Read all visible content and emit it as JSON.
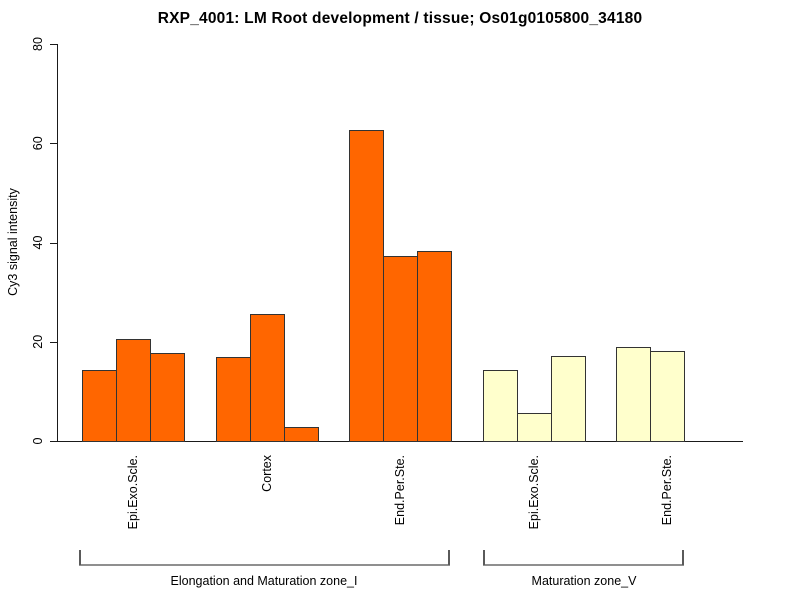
{
  "chart_data": {
    "type": "bar",
    "title": "RXP_4001: LM Root development / tissue; Os01g0105800_34180",
    "xlabel": "",
    "ylabel": "Cy3 signal intensity",
    "ylim": [
      0,
      80
    ],
    "yticks": [
      0,
      20,
      40,
      60,
      80
    ],
    "grid": false,
    "legend_position": "none",
    "bar_border_color": "#333333",
    "groups": [
      {
        "tissue": "Epi.Exo.Scle.",
        "zone": "Elongation and Maturation zone_I",
        "color": "#FF6600",
        "values": [
          14.3,
          20.5,
          17.7
        ]
      },
      {
        "tissue": "Cortex",
        "zone": "Elongation and Maturation zone_I",
        "color": "#FF6600",
        "values": [
          17.0,
          25.6,
          2.9
        ]
      },
      {
        "tissue": "End.Per.Ste.",
        "zone": "Elongation and Maturation zone_I",
        "color": "#FF6600",
        "values": [
          62.7,
          37.3,
          38.2
        ]
      },
      {
        "tissue": "Epi.Exo.Scle.",
        "zone": "Maturation zone_V",
        "color": "#FFFFCC",
        "values": [
          14.4,
          5.6,
          17.1
        ]
      },
      {
        "tissue": "End.Per.Ste.",
        "zone": "Maturation zone_V",
        "color": "#FFFFCC",
        "values": [
          18.9,
          18.1
        ]
      }
    ],
    "zone_brackets": [
      {
        "label": "Elongation and Maturation zone_I"
      },
      {
        "label": "Maturation zone_V"
      }
    ]
  }
}
